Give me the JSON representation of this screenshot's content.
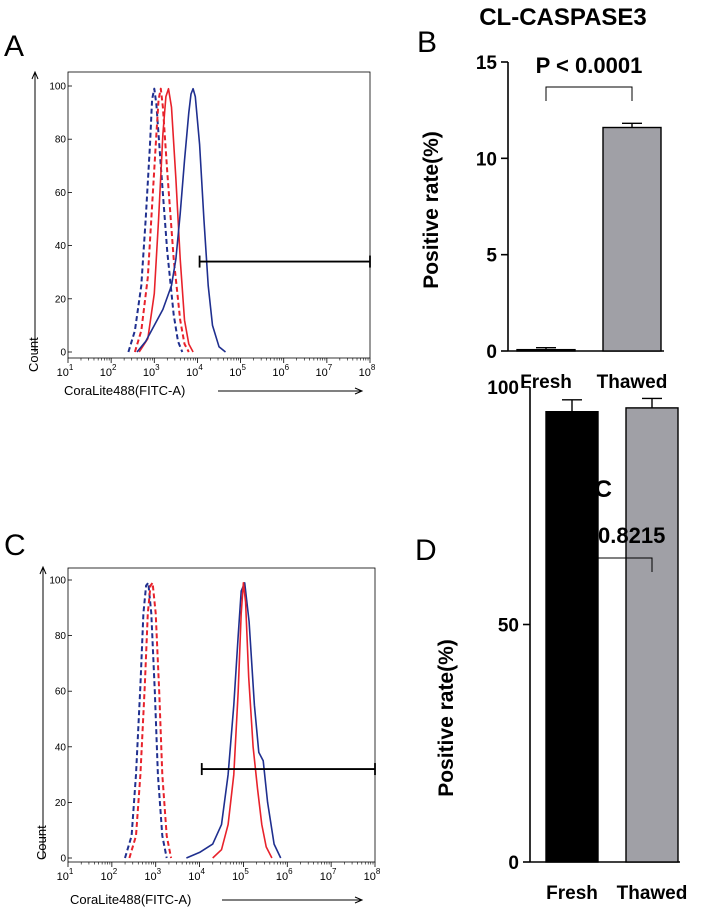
{
  "chart_data": [
    {
      "panel": "A",
      "type": "line",
      "xlabel": "CoraLite488(FITC-A)",
      "ylabel": "Count",
      "x_scale": "log",
      "xlim": [
        1,
        8
      ],
      "ylim": [
        0,
        100
      ],
      "x_tick_labels": [
        {
          "base": "10",
          "exp": "1"
        },
        {
          "base": "10",
          "exp": "2"
        },
        {
          "base": "10",
          "exp": "3"
        },
        {
          "base": "10",
          "exp": "4"
        },
        {
          "base": "10",
          "exp": "5"
        },
        {
          "base": "10",
          "exp": "6"
        },
        {
          "base": "10",
          "exp": "7"
        },
        {
          "base": "10",
          "exp": "8"
        }
      ],
      "y_ticks": [
        "0",
        "20",
        "40",
        "60",
        "80",
        "100"
      ],
      "gate": {
        "x_start": 4.05,
        "x_end": 8,
        "y": 34
      },
      "series": [
        {
          "color": "#1f2f8f",
          "dash": true,
          "x": [
            2.4,
            2.55,
            2.7,
            2.8,
            2.9,
            2.95,
            3.0,
            3.05,
            3.15,
            3.3,
            3.45,
            3.55,
            3.65
          ],
          "y": [
            0,
            8,
            25,
            50,
            78,
            95,
            99,
            93,
            70,
            38,
            14,
            4,
            0
          ]
        },
        {
          "color": "#e8222b",
          "dash": true,
          "x": [
            2.55,
            2.7,
            2.85,
            2.95,
            3.05,
            3.1,
            3.15,
            3.2,
            3.3,
            3.45,
            3.6,
            3.7,
            3.8
          ],
          "y": [
            0,
            8,
            28,
            55,
            82,
            95,
            99,
            92,
            68,
            35,
            12,
            3,
            0
          ]
        },
        {
          "color": "#e8222b",
          "dash": false,
          "x": [
            2.65,
            2.85,
            3.0,
            3.1,
            3.2,
            3.27,
            3.33,
            3.4,
            3.5,
            3.6,
            3.7,
            3.8,
            3.9
          ],
          "y": [
            0,
            5,
            22,
            50,
            82,
            96,
            99,
            92,
            65,
            35,
            12,
            3,
            0
          ]
        },
        {
          "color": "#1f2f8f",
          "dash": false,
          "x": [
            2.6,
            2.8,
            3.0,
            3.2,
            3.4,
            3.5,
            3.6,
            3.7,
            3.8,
            3.85,
            3.9,
            3.95,
            4.05,
            4.15,
            4.25,
            4.35,
            4.5,
            4.65
          ],
          "y": [
            0,
            4,
            10,
            16,
            25,
            35,
            52,
            72,
            90,
            97,
            99,
            96,
            78,
            50,
            25,
            10,
            2,
            0
          ]
        }
      ]
    },
    {
      "panel": "B",
      "type": "bar",
      "title": "CL-CASPASE3",
      "ylabel": "Positive rate(%)",
      "categories": [
        "Fresh",
        "Thawed"
      ],
      "values": [
        0.07,
        11.6
      ],
      "errors": [
        0.1,
        0.22
      ],
      "bar_colors": [
        "#000000",
        "#a0a0a6"
      ],
      "ylim": [
        0,
        15
      ],
      "y_ticks": [
        "0",
        "5",
        "10",
        "15"
      ],
      "annotation": "P < 0.0001"
    },
    {
      "panel": "C",
      "type": "line",
      "xlabel": "CoraLite488(FITC-A)",
      "ylabel": "Count",
      "x_scale": "log",
      "xlim": [
        1,
        8
      ],
      "ylim": [
        0,
        100
      ],
      "x_tick_labels": [
        {
          "base": "10",
          "exp": "1"
        },
        {
          "base": "10",
          "exp": "2"
        },
        {
          "base": "10",
          "exp": "3"
        },
        {
          "base": "10",
          "exp": "4"
        },
        {
          "base": "10",
          "exp": "5"
        },
        {
          "base": "10",
          "exp": "6"
        },
        {
          "base": "10",
          "exp": "7"
        },
        {
          "base": "10",
          "exp": "8"
        }
      ],
      "y_ticks": [
        "0",
        "20",
        "40",
        "60",
        "80",
        "100"
      ],
      "gate": {
        "x_start": 4.05,
        "x_end": 8,
        "y": 32
      },
      "series": [
        {
          "color": "#1f2f8f",
          "dash": true,
          "x": [
            2.3,
            2.45,
            2.55,
            2.65,
            2.72,
            2.78,
            2.83,
            2.9,
            2.98,
            3.05,
            3.15,
            3.25
          ],
          "y": [
            0,
            8,
            30,
            62,
            88,
            98,
            99,
            88,
            60,
            30,
            8,
            0
          ]
        },
        {
          "color": "#e8222b",
          "dash": true,
          "x": [
            2.4,
            2.55,
            2.65,
            2.75,
            2.82,
            2.88,
            2.93,
            3.0,
            3.08,
            3.15,
            3.25,
            3.35
          ],
          "y": [
            0,
            8,
            30,
            62,
            88,
            98,
            99,
            88,
            60,
            30,
            8,
            0
          ]
        },
        {
          "color": "#1f2f8f",
          "dash": false,
          "x": [
            3.7,
            4.0,
            4.3,
            4.5,
            4.65,
            4.78,
            4.88,
            4.95,
            5.03,
            5.13,
            5.25,
            5.35,
            5.45,
            5.55,
            5.7,
            5.85
          ],
          "y": [
            0,
            2,
            5,
            12,
            30,
            55,
            80,
            96,
            99,
            85,
            55,
            38,
            35,
            20,
            5,
            0
          ]
        },
        {
          "color": "#e8222b",
          "dash": false,
          "x": [
            4.3,
            4.5,
            4.65,
            4.78,
            4.88,
            4.95,
            5.0,
            5.05,
            5.12,
            5.22,
            5.32,
            5.42,
            5.52,
            5.65
          ],
          "y": [
            0,
            3,
            12,
            30,
            60,
            88,
            99,
            92,
            65,
            40,
            25,
            12,
            4,
            0
          ]
        }
      ]
    },
    {
      "panel": "D",
      "type": "bar",
      "title": "TFRC",
      "ylabel": "Positive rate(%)",
      "categories": [
        "Fresh",
        "Thawed"
      ],
      "values": [
        94.8,
        95.6
      ],
      "errors": [
        2.5,
        2.0
      ],
      "bar_colors": [
        "#000000",
        "#a0a0a6"
      ],
      "ylim": [
        0,
        100
      ],
      "y_ticks": [
        "0",
        "50",
        "100"
      ],
      "annotation": "P = 0.8215"
    }
  ]
}
